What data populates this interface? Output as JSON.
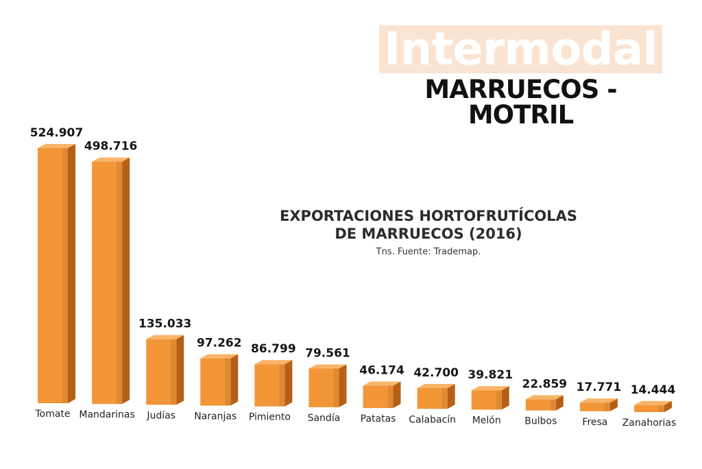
{
  "header": {
    "brand": "Intermodal",
    "route": "MARRUECOS - MOTRIL"
  },
  "colors": {
    "bar_front": "#f29638",
    "bar_side": "#b65f17",
    "bar_top": "#f8b469",
    "brand_band": "#fbe3d2"
  },
  "chart_data": {
    "type": "bar",
    "title_lines": [
      "EXPORTACIONES HORTOFRUTÍCOLAS",
      "DE MARRUECOS (2016)"
    ],
    "subtitle": "Tns. Fuente: Trademap.",
    "xlabel": "",
    "ylabel": "",
    "ylim": [
      0,
      524907
    ],
    "grid": false,
    "categories": [
      "Tomate",
      "Mandarinas",
      "Judías",
      "Naranjas",
      "Pimiento",
      "Sandía",
      "Patatas",
      "Calabacín",
      "Melón",
      "Bulbos",
      "Fresa",
      "Zanahorias"
    ],
    "values": [
      524907,
      498716,
      135033,
      97262,
      86799,
      79561,
      46174,
      42700,
      39821,
      22859,
      17771,
      14444
    ],
    "value_labels": [
      "524.907",
      "498.716",
      "135.033",
      "97.262",
      "86.799",
      "79.561",
      "46.174",
      "42.700",
      "39.821",
      "22.859",
      "17.771",
      "14.444"
    ]
  }
}
